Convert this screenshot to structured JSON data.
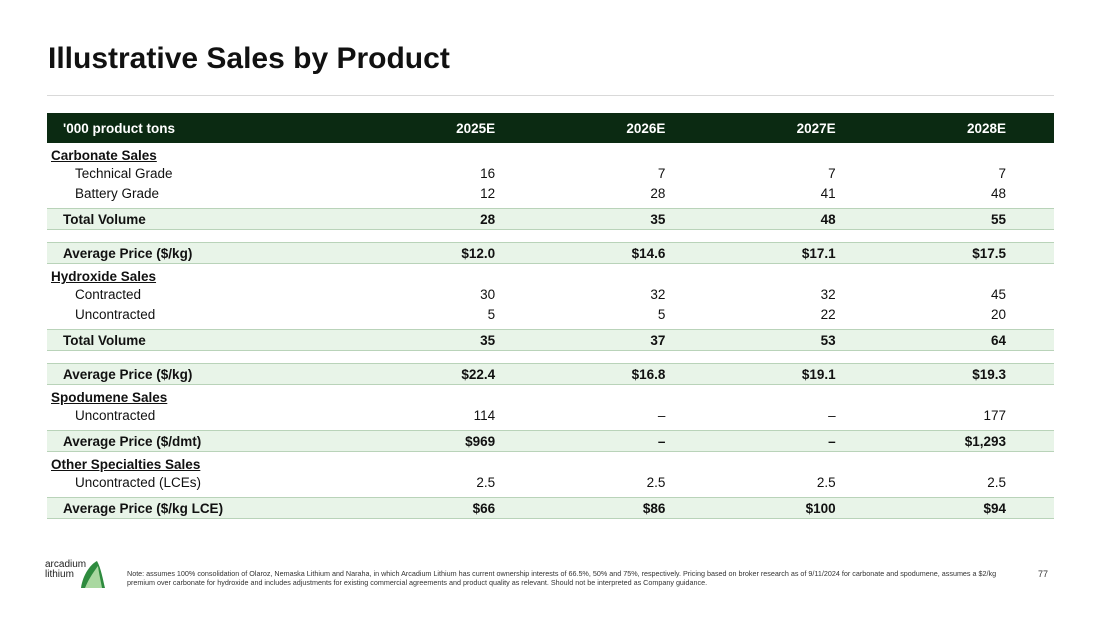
{
  "title": "Illustrative Sales by Product",
  "header": {
    "label": "'000 product tons",
    "years": [
      "2025E",
      "2026E",
      "2027E",
      "2028E"
    ]
  },
  "carbonate": {
    "title": "Carbonate Sales",
    "rows": [
      {
        "label": "Technical Grade",
        "values": [
          "16",
          "7",
          "7",
          "7"
        ]
      },
      {
        "label": "Battery Grade",
        "values": [
          "12",
          "28",
          "41",
          "48"
        ]
      }
    ],
    "total": {
      "label": "Total Volume",
      "values": [
        "28",
        "35",
        "48",
        "55"
      ]
    },
    "price": {
      "label": "Average Price ($/kg)",
      "values": [
        "$12.0",
        "$14.6",
        "$17.1",
        "$17.5"
      ]
    }
  },
  "hydroxide": {
    "title": "Hydroxide Sales",
    "rows": [
      {
        "label": "Contracted",
        "values": [
          "30",
          "32",
          "32",
          "45"
        ]
      },
      {
        "label": "Uncontracted",
        "values": [
          "5",
          "5",
          "22",
          "20"
        ]
      }
    ],
    "total": {
      "label": "Total Volume",
      "values": [
        "35",
        "37",
        "53",
        "64"
      ]
    },
    "price": {
      "label": "Average Price ($/kg)",
      "values": [
        "$22.4",
        "$16.8",
        "$19.1",
        "$19.3"
      ]
    }
  },
  "spodumene": {
    "title": "Spodumene Sales",
    "rows": [
      {
        "label": "Uncontracted",
        "values": [
          "114",
          "–",
          "–",
          "177"
        ]
      }
    ],
    "price": {
      "label": "Average Price ($/dmt)",
      "values": [
        "$969",
        "–",
        "–",
        "$1,293"
      ]
    }
  },
  "other": {
    "title": "Other Specialties Sales",
    "rows": [
      {
        "label": "Uncontracted (LCEs)",
        "values": [
          "2.5",
          "2.5",
          "2.5",
          "2.5"
        ]
      }
    ],
    "price": {
      "label": "Average Price ($/kg LCE)",
      "values": [
        "$66",
        "$86",
        "$100",
        "$94"
      ]
    }
  },
  "footer": {
    "logo_line1": "arcadium",
    "logo_line2": "lithium",
    "note": "Note: assumes 100% consolidation of Olaroz, Nemaska Lithium and Naraha, in which Arcadium Lithium has current ownership interests of 66.5%, 50% and 75%, respectively. Pricing based on broker research as of 9/11/2024 for carbonate and spodumene, assumes a $2/kg premium over carbonate for hydroxide and includes adjustments for existing commercial agreements and product quality as relevant. Should not be interpreted as Company guidance.",
    "page_number": "77"
  },
  "colors": {
    "header_bg": "#0b2a12",
    "total_bg": "#e8f4e8",
    "logo_green": "#2e8b3e"
  }
}
